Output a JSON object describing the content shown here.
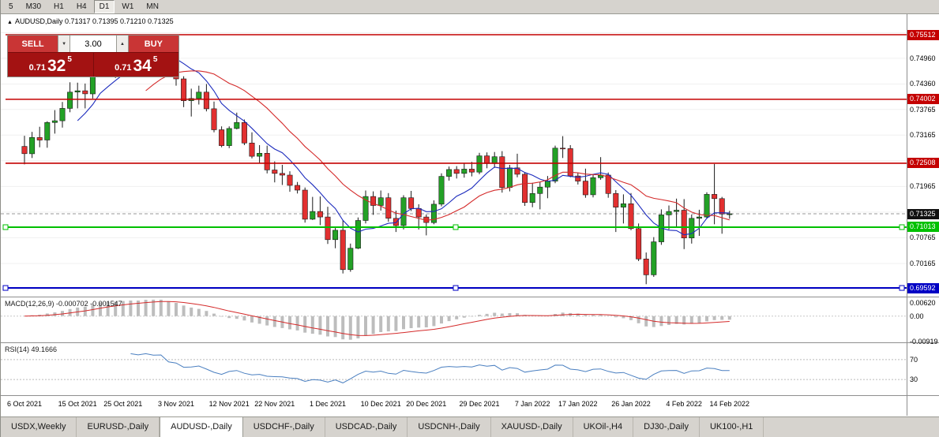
{
  "icons": {
    "header_marker": "▲",
    "spin_down": "▼",
    "spin_up": "▲"
  },
  "toolbar": {
    "periods": [
      {
        "label": "5",
        "active": false
      },
      {
        "label": "M30",
        "active": false
      },
      {
        "label": "H1",
        "active": false
      },
      {
        "label": "H4",
        "active": false
      },
      {
        "label": "D1",
        "active": true
      },
      {
        "label": "W1",
        "active": false
      },
      {
        "label": "MN",
        "active": false
      }
    ]
  },
  "chart_header": {
    "text": "AUDUSD,Daily 0.71317 0.71395 0.71210 0.71325"
  },
  "trade_panel": {
    "sell_label": "SELL",
    "buy_label": "BUY",
    "volume": "3.00",
    "sell": {
      "prefix": "0.71",
      "big": "32",
      "sup": "5"
    },
    "buy": {
      "prefix": "0.71",
      "big": "34",
      "sup": "5"
    }
  },
  "colors": {
    "bull": "#23a126",
    "bear": "#e23030",
    "candle_outline": "#1a1a1a",
    "ma_fast": "#1c2bbd",
    "ma_slow": "#d42a2a",
    "hline_red": "#c40000",
    "hline_green": "#00c000",
    "hline_blue": "#0000c4",
    "macd_hist": "#bdbdbd",
    "macd_signal": "#d42a2a",
    "rsi_line": "#4a7fc0",
    "grid": "#f0f0f0",
    "separator": "#8e8e8e",
    "bid_line": "#999999"
  },
  "price_axis": {
    "labels": [
      {
        "text": "0.74960",
        "value": 0.7496
      },
      {
        "text": "0.74360",
        "value": 0.7436
      },
      {
        "text": "0.73765",
        "value": 0.73765
      },
      {
        "text": "0.73165",
        "value": 0.73165
      },
      {
        "text": "0.72565",
        "value": 0.72565
      },
      {
        "text": "0.71965",
        "value": 0.71965
      },
      {
        "text": "0.70765",
        "value": 0.70765
      },
      {
        "text": "0.70165",
        "value": 0.70165
      }
    ],
    "badges": [
      {
        "text": "0.75512",
        "value": 0.75512,
        "bg": "#c40000",
        "fg": "#ffffff"
      },
      {
        "text": "0.74002",
        "value": 0.74002,
        "bg": "#c40000",
        "fg": "#ffffff"
      },
      {
        "text": "0.72508",
        "value": 0.72508,
        "bg": "#c40000",
        "fg": "#ffffff"
      },
      {
        "text": "0.71325",
        "value": 0.71325,
        "bg": "#111111",
        "fg": "#ffffff"
      },
      {
        "text": "0.71013",
        "value": 0.71013,
        "bg": "#00c000",
        "fg": "#ffffff"
      },
      {
        "text": "0.69592",
        "value": 0.69592,
        "bg": "#0000c4",
        "fg": "#ffffff"
      }
    ]
  },
  "hlines": [
    {
      "value": 0.75512,
      "color": "#c40000",
      "width": 1.6,
      "handles": false
    },
    {
      "value": 0.74002,
      "color": "#c40000",
      "width": 1.6,
      "handles": false
    },
    {
      "value": 0.72508,
      "color": "#c40000",
      "width": 1.6,
      "handles": false
    },
    {
      "value": 0.71013,
      "color": "#00c000",
      "width": 2,
      "handles": true
    },
    {
      "value": 0.69592,
      "color": "#0000c4",
      "width": 2,
      "handles": true
    }
  ],
  "current_price": {
    "value": 0.71325,
    "label": "0.71325"
  },
  "macd": {
    "name": "MACD(12,26,9)",
    "value_main": "-0.000702",
    "value_signal": "-0.001547",
    "max": 0.0062,
    "min": -0.00919,
    "axis": [
      {
        "text": "0.00620",
        "value": 0.0062
      },
      {
        "text": "0.00",
        "value": 0
      },
      {
        "text": "-0.00919",
        "value": -0.00919
      }
    ]
  },
  "rsi": {
    "name": "RSI(14)",
    "value": "49.1666",
    "levels": [
      70,
      30
    ]
  },
  "tabs": [
    {
      "label": "USDX,Weekly",
      "active": false
    },
    {
      "label": "EURUSD-,Daily",
      "active": false
    },
    {
      "label": "AUDUSD-,Daily",
      "active": true
    },
    {
      "label": "USDCHF-,Daily",
      "active": false
    },
    {
      "label": "USDCAD-,Daily",
      "active": false
    },
    {
      "label": "USDCNH-,Daily",
      "active": false
    },
    {
      "label": "XAUUSD-,Daily",
      "active": false
    },
    {
      "label": "UKOil-,H4",
      "active": false
    },
    {
      "label": "DJ30-,Daily",
      "active": false
    },
    {
      "label": "UK100-,H1",
      "active": false
    }
  ],
  "chart_data": {
    "type": "candlestick",
    "title": "AUDUSD,Daily",
    "ohlc_format": [
      "open",
      "high",
      "low",
      "close"
    ],
    "ylim": [
      0.693,
      0.76
    ],
    "grid_prices": [
      0.7556,
      0.7496,
      0.7436,
      0.73765,
      0.73165,
      0.72565,
      0.71965,
      0.71365,
      0.70765,
      0.70165,
      0.69565
    ],
    "overlays": [
      "moving-average-fast-blue",
      "moving-average-slow-red"
    ],
    "indicators": [
      "MACD(12,26,9)",
      "RSI(14)"
    ],
    "ohlc": [
      [
        0.729,
        0.7315,
        0.7248,
        0.7273
      ],
      [
        0.7273,
        0.7324,
        0.7263,
        0.7311
      ],
      [
        0.7311,
        0.7336,
        0.7288,
        0.7305
      ],
      [
        0.7305,
        0.7349,
        0.7287,
        0.7346
      ],
      [
        0.7346,
        0.7375,
        0.732,
        0.735
      ],
      [
        0.735,
        0.7394,
        0.7334,
        0.7379
      ],
      [
        0.7379,
        0.744,
        0.737,
        0.7417
      ],
      [
        0.7417,
        0.7439,
        0.7379,
        0.742
      ],
      [
        0.742,
        0.7437,
        0.7379,
        0.7413
      ],
      [
        0.7413,
        0.7475,
        0.7402,
        0.7474
      ],
      [
        0.7474,
        0.7526,
        0.7459,
        0.7516
      ],
      [
        0.7516,
        0.7546,
        0.7454,
        0.7468
      ],
      [
        0.7468,
        0.7508,
        0.745,
        0.7465
      ],
      [
        0.7465,
        0.7505,
        0.7455,
        0.7488
      ],
      [
        0.7488,
        0.7536,
        0.748,
        0.75
      ],
      [
        0.75,
        0.7527,
        0.7484,
        0.749
      ],
      [
        0.749,
        0.7536,
        0.7487,
        0.753
      ],
      [
        0.753,
        0.7541,
        0.75,
        0.7518
      ],
      [
        0.7518,
        0.7536,
        0.7482,
        0.7525
      ],
      [
        0.7525,
        0.7535,
        0.7453,
        0.746
      ],
      [
        0.746,
        0.7489,
        0.7432,
        0.7448
      ],
      [
        0.7448,
        0.7454,
        0.7382,
        0.7397
      ],
      [
        0.7397,
        0.7425,
        0.736,
        0.7402
      ],
      [
        0.7402,
        0.7432,
        0.7388,
        0.7417
      ],
      [
        0.7417,
        0.7436,
        0.7372,
        0.7378
      ],
      [
        0.7378,
        0.7395,
        0.7323,
        0.7329
      ],
      [
        0.7329,
        0.7337,
        0.7288,
        0.7292
      ],
      [
        0.7292,
        0.7337,
        0.7286,
        0.7332
      ],
      [
        0.7332,
        0.7369,
        0.733,
        0.7346
      ],
      [
        0.7346,
        0.7353,
        0.7293,
        0.7298
      ],
      [
        0.7298,
        0.7323,
        0.7262,
        0.7267
      ],
      [
        0.7267,
        0.7293,
        0.725,
        0.7274
      ],
      [
        0.7274,
        0.7292,
        0.7227,
        0.7235
      ],
      [
        0.7235,
        0.7255,
        0.7206,
        0.7227
      ],
      [
        0.7227,
        0.7247,
        0.72,
        0.7223
      ],
      [
        0.7223,
        0.7232,
        0.7184,
        0.7199
      ],
      [
        0.7199,
        0.7207,
        0.718,
        0.7188
      ],
      [
        0.7188,
        0.7194,
        0.7112,
        0.712
      ],
      [
        0.712,
        0.7172,
        0.7118,
        0.7138
      ],
      [
        0.7138,
        0.7173,
        0.7106,
        0.7125
      ],
      [
        0.7125,
        0.7149,
        0.7062,
        0.7072
      ],
      [
        0.7072,
        0.7103,
        0.7052,
        0.7094
      ],
      [
        0.7094,
        0.7117,
        0.6993,
        0.7002
      ],
      [
        0.7002,
        0.7063,
        0.6997,
        0.7052
      ],
      [
        0.7052,
        0.7124,
        0.705,
        0.7117
      ],
      [
        0.7117,
        0.7187,
        0.711,
        0.7173
      ],
      [
        0.7173,
        0.7185,
        0.713,
        0.7152
      ],
      [
        0.7152,
        0.7187,
        0.714,
        0.717
      ],
      [
        0.717,
        0.7181,
        0.7114,
        0.7122
      ],
      [
        0.7122,
        0.714,
        0.709,
        0.7105
      ],
      [
        0.7105,
        0.7176,
        0.7096,
        0.717
      ],
      [
        0.717,
        0.7186,
        0.7139,
        0.7145
      ],
      [
        0.7145,
        0.7155,
        0.7096,
        0.7125
      ],
      [
        0.7125,
        0.7131,
        0.7082,
        0.7112
      ],
      [
        0.7112,
        0.7164,
        0.7108,
        0.7155
      ],
      [
        0.7155,
        0.7227,
        0.715,
        0.722
      ],
      [
        0.722,
        0.7243,
        0.721,
        0.7236
      ],
      [
        0.7236,
        0.7244,
        0.7215,
        0.7227
      ],
      [
        0.7227,
        0.725,
        0.7217,
        0.7237
      ],
      [
        0.7237,
        0.7254,
        0.722,
        0.723
      ],
      [
        0.723,
        0.7275,
        0.7225,
        0.7268
      ],
      [
        0.7268,
        0.7276,
        0.7239,
        0.725
      ],
      [
        0.725,
        0.7277,
        0.724,
        0.7266
      ],
      [
        0.7266,
        0.7279,
        0.7182,
        0.7194
      ],
      [
        0.7194,
        0.7247,
        0.7185,
        0.724
      ],
      [
        0.724,
        0.7273,
        0.7218,
        0.7225
      ],
      [
        0.7225,
        0.7229,
        0.7151,
        0.7159
      ],
      [
        0.7159,
        0.7205,
        0.7148,
        0.718
      ],
      [
        0.718,
        0.7207,
        0.7143,
        0.7195
      ],
      [
        0.7195,
        0.7221,
        0.7169,
        0.7209
      ],
      [
        0.7209,
        0.7292,
        0.7204,
        0.7286
      ],
      [
        0.7286,
        0.7314,
        0.7263,
        0.7285
      ],
      [
        0.7285,
        0.7293,
        0.7218,
        0.7221
      ],
      [
        0.7221,
        0.7228,
        0.7201,
        0.7209
      ],
      [
        0.7209,
        0.7238,
        0.717,
        0.7177
      ],
      [
        0.7177,
        0.7224,
        0.7171,
        0.7217
      ],
      [
        0.7217,
        0.7265,
        0.7212,
        0.7223
      ],
      [
        0.7223,
        0.7229,
        0.717,
        0.718
      ],
      [
        0.718,
        0.7188,
        0.709,
        0.7148
      ],
      [
        0.7148,
        0.7178,
        0.711,
        0.7156
      ],
      [
        0.7156,
        0.7181,
        0.7094,
        0.7098
      ],
      [
        0.7098,
        0.711,
        0.7022,
        0.7027
      ],
      [
        0.7027,
        0.7042,
        0.6968,
        0.699
      ],
      [
        0.699,
        0.7078,
        0.6985,
        0.7067
      ],
      [
        0.7067,
        0.7143,
        0.706,
        0.713
      ],
      [
        0.713,
        0.7152,
        0.7096,
        0.7138
      ],
      [
        0.7138,
        0.7168,
        0.7102,
        0.7141
      ],
      [
        0.7141,
        0.7167,
        0.705,
        0.7076
      ],
      [
        0.7076,
        0.7131,
        0.7063,
        0.7122
      ],
      [
        0.7122,
        0.7142,
        0.7081,
        0.7125
      ],
      [
        0.7125,
        0.7183,
        0.7121,
        0.7178
      ],
      [
        0.7178,
        0.7249,
        0.7108,
        0.7168
      ],
      [
        0.7168,
        0.7172,
        0.7086,
        0.7132
      ],
      [
        0.71317,
        0.71395,
        0.7121,
        0.71325
      ]
    ],
    "tick_labels": [
      [
        0,
        "6 Oct 2021"
      ],
      [
        7,
        "15 Oct 2021"
      ],
      [
        13,
        "25 Oct 2021"
      ],
      [
        20,
        "3 Nov 2021"
      ],
      [
        27,
        "12 Nov 2021"
      ],
      [
        33,
        "22 Nov 2021"
      ],
      [
        40,
        "1 Dec 2021"
      ],
      [
        47,
        "10 Dec 2021"
      ],
      [
        53,
        "20 Dec 2021"
      ],
      [
        60,
        "29 Dec 2021"
      ],
      [
        67,
        "7 Jan 2022"
      ],
      [
        73,
        "17 Jan 2022"
      ],
      [
        80,
        "26 Jan 2022"
      ],
      [
        87,
        "4 Feb 2022"
      ],
      [
        93,
        "14 Feb 2022"
      ]
    ]
  }
}
